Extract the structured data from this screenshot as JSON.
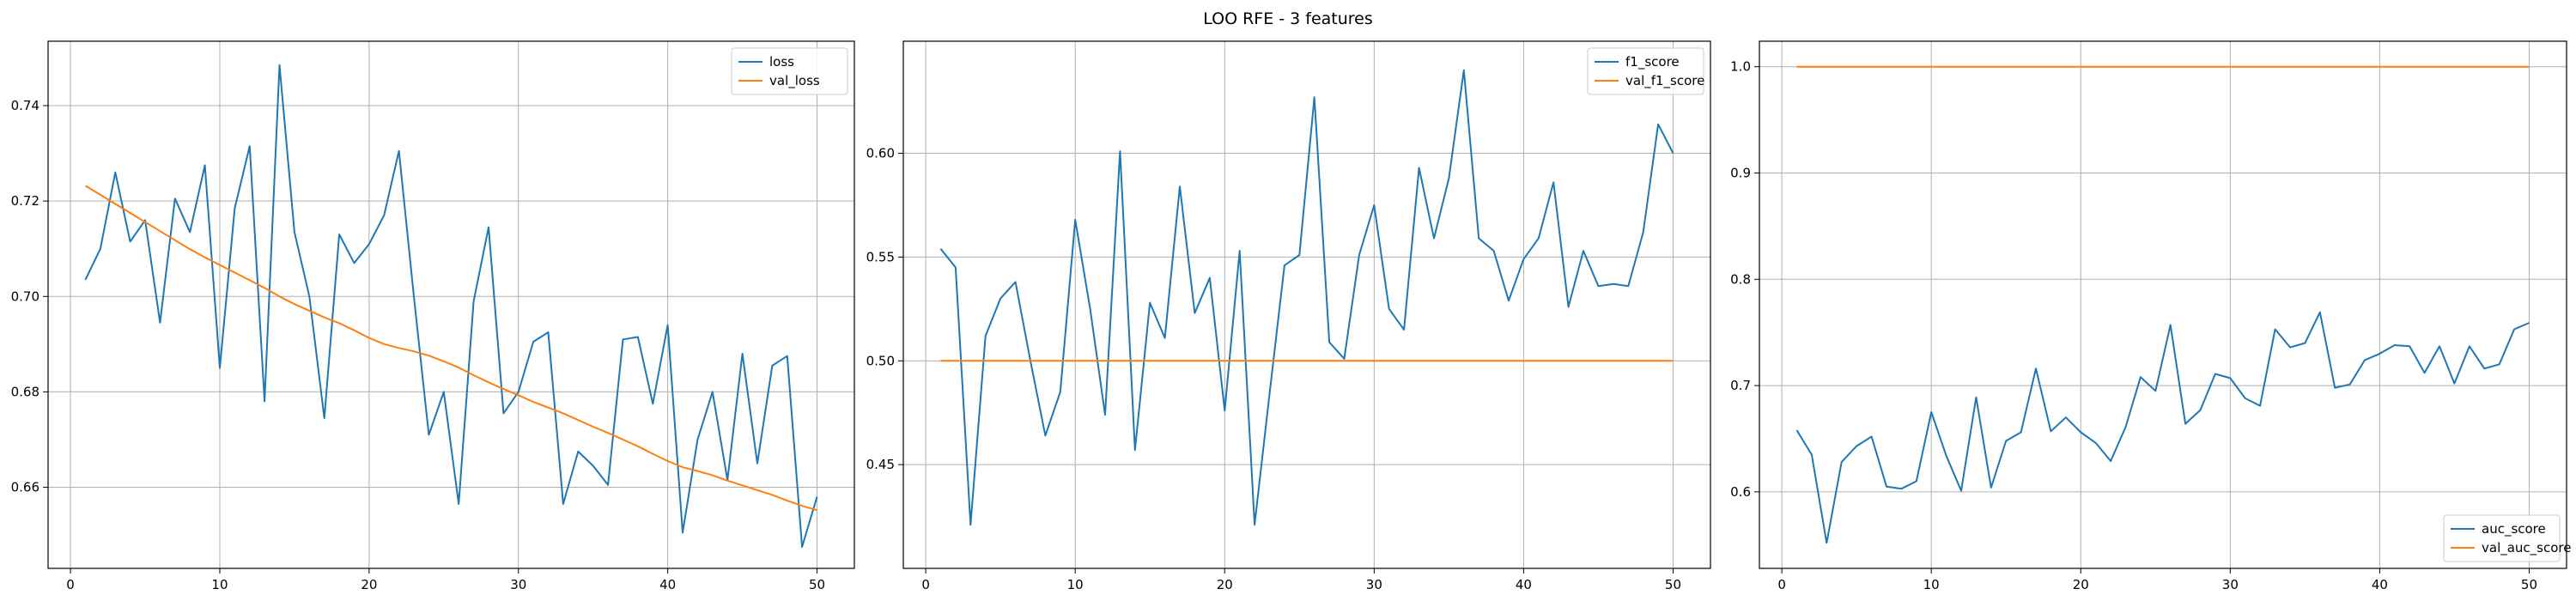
{
  "figure": {
    "title": "LOO RFE - 3 features"
  },
  "colors": {
    "train": "#1f77b4",
    "val": "#ff7f0e",
    "grid": "#b0b0b0",
    "axis": "#000000"
  },
  "chart_data": [
    {
      "type": "line",
      "grid": true,
      "legend_position": "top-right",
      "xlim": [
        -1.5,
        52.5
      ],
      "ylim": [
        0.643,
        0.7535
      ],
      "xticks": [
        0,
        10,
        20,
        30,
        40,
        50
      ],
      "yticks": [
        0.66,
        0.68,
        0.7,
        0.72,
        0.74
      ],
      "ytick_labels": [
        "0.66",
        "0.68",
        "0.70",
        "0.72",
        "0.74"
      ],
      "x": [
        1,
        2,
        3,
        4,
        5,
        6,
        7,
        8,
        9,
        10,
        11,
        12,
        13,
        14,
        15,
        16,
        17,
        18,
        19,
        20,
        21,
        22,
        23,
        24,
        25,
        26,
        27,
        28,
        29,
        30,
        31,
        32,
        33,
        34,
        35,
        36,
        37,
        38,
        39,
        40,
        41,
        42,
        43,
        44,
        45,
        46,
        47,
        48,
        49,
        50
      ],
      "series": [
        {
          "name": "loss",
          "color": "#1f77b4",
          "values": [
            0.7035,
            0.71,
            0.726,
            0.7115,
            0.716,
            0.6945,
            0.7205,
            0.7135,
            0.7275,
            0.685,
            0.7185,
            0.7315,
            0.678,
            0.7485,
            0.7135,
            0.7,
            0.6745,
            0.713,
            0.707,
            0.711,
            0.717,
            0.7305,
            0.7,
            0.671,
            0.68,
            0.6565,
            0.699,
            0.7145,
            0.6755,
            0.68,
            0.6905,
            0.6925,
            0.6565,
            0.6675,
            0.6645,
            0.6605,
            0.691,
            0.6915,
            0.6775,
            0.694,
            0.6505,
            0.67,
            0.68,
            0.6615,
            0.688,
            0.665,
            0.6855,
            0.6875,
            0.6475,
            0.658
          ]
        },
        {
          "name": "val_loss",
          "color": "#ff7f0e",
          "values": [
            0.7232,
            0.7213,
            0.7194,
            0.7175,
            0.7156,
            0.7137,
            0.7118,
            0.7099,
            0.7082,
            0.7066,
            0.705,
            0.7034,
            0.7018,
            0.7,
            0.6984,
            0.697,
            0.6956,
            0.6944,
            0.6929,
            0.6913,
            0.69,
            0.6892,
            0.6885,
            0.6876,
            0.6864,
            0.6851,
            0.6835,
            0.682,
            0.6806,
            0.6793,
            0.6779,
            0.6767,
            0.6755,
            0.6741,
            0.6727,
            0.6714,
            0.67,
            0.6686,
            0.667,
            0.6655,
            0.6642,
            0.6634,
            0.6625,
            0.6614,
            0.6604,
            0.6594,
            0.6584,
            0.6572,
            0.6561,
            0.6552
          ]
        }
      ]
    },
    {
      "type": "line",
      "grid": true,
      "legend_position": "top-right",
      "xlim": [
        -1.5,
        52.5
      ],
      "ylim": [
        0.4,
        0.654
      ],
      "xticks": [
        0,
        10,
        20,
        30,
        40,
        50
      ],
      "yticks": [
        0.45,
        0.5,
        0.55,
        0.6
      ],
      "ytick_labels": [
        "0.45",
        "0.50",
        "0.55",
        "0.60"
      ],
      "x": [
        1,
        2,
        3,
        4,
        5,
        6,
        7,
        8,
        9,
        10,
        11,
        12,
        13,
        14,
        15,
        16,
        17,
        18,
        19,
        20,
        21,
        22,
        23,
        24,
        25,
        26,
        27,
        28,
        29,
        30,
        31,
        32,
        33,
        34,
        35,
        36,
        37,
        38,
        39,
        40,
        41,
        42,
        43,
        44,
        45,
        46,
        47,
        48,
        49,
        50
      ],
      "series": [
        {
          "name": "f1_score",
          "color": "#1f77b4",
          "values": [
            0.554,
            0.545,
            0.421,
            0.512,
            0.53,
            0.538,
            0.5,
            0.464,
            0.485,
            0.568,
            0.525,
            0.474,
            0.601,
            0.457,
            0.528,
            0.511,
            0.584,
            0.523,
            0.54,
            0.476,
            0.553,
            0.421,
            0.484,
            0.546,
            0.551,
            0.627,
            0.509,
            0.501,
            0.551,
            0.575,
            0.525,
            0.515,
            0.593,
            0.559,
            0.588,
            0.64,
            0.559,
            0.553,
            0.529,
            0.549,
            0.559,
            0.586,
            0.526,
            0.553,
            0.536,
            0.537,
            0.536,
            0.562,
            0.614,
            0.6
          ]
        },
        {
          "name": "val_f1_score",
          "color": "#ff7f0e",
          "values": [
            0.5,
            0.5,
            0.5,
            0.5,
            0.5,
            0.5,
            0.5,
            0.5,
            0.5,
            0.5,
            0.5,
            0.5,
            0.5,
            0.5,
            0.5,
            0.5,
            0.5,
            0.5,
            0.5,
            0.5,
            0.5,
            0.5,
            0.5,
            0.5,
            0.5,
            0.5,
            0.5,
            0.5,
            0.5,
            0.5,
            0.5,
            0.5,
            0.5,
            0.5,
            0.5,
            0.5,
            0.5,
            0.5,
            0.5,
            0.5,
            0.5,
            0.5,
            0.5,
            0.5,
            0.5,
            0.5,
            0.5,
            0.5,
            0.5,
            0.5
          ]
        }
      ]
    },
    {
      "type": "line",
      "grid": true,
      "legend_position": "bottom-right",
      "xlim": [
        -1.5,
        52.5
      ],
      "ylim": [
        0.528,
        1.024
      ],
      "xticks": [
        0,
        10,
        20,
        30,
        40,
        50
      ],
      "yticks": [
        0.6,
        0.7,
        0.8,
        0.9,
        1.0
      ],
      "ytick_labels": [
        "0.6",
        "0.7",
        "0.8",
        "0.9",
        "1.0"
      ],
      "x": [
        1,
        2,
        3,
        4,
        5,
        6,
        7,
        8,
        9,
        10,
        11,
        12,
        13,
        14,
        15,
        16,
        17,
        18,
        19,
        20,
        21,
        22,
        23,
        24,
        25,
        26,
        27,
        28,
        29,
        30,
        31,
        32,
        33,
        34,
        35,
        36,
        37,
        38,
        39,
        40,
        41,
        42,
        43,
        44,
        45,
        46,
        47,
        48,
        49,
        50
      ],
      "series": [
        {
          "name": "auc_score",
          "color": "#1f77b4",
          "values": [
            0.658,
            0.635,
            0.552,
            0.628,
            0.643,
            0.652,
            0.605,
            0.603,
            0.61,
            0.675,
            0.634,
            0.601,
            0.689,
            0.604,
            0.648,
            0.656,
            0.716,
            0.657,
            0.67,
            0.656,
            0.646,
            0.629,
            0.661,
            0.708,
            0.695,
            0.757,
            0.664,
            0.677,
            0.711,
            0.707,
            0.688,
            0.681,
            0.753,
            0.736,
            0.74,
            0.769,
            0.698,
            0.701,
            0.724,
            0.73,
            0.738,
            0.737,
            0.712,
            0.737,
            0.702,
            0.737,
            0.716,
            0.72,
            0.753,
            0.759
          ]
        },
        {
          "name": "val_auc_score",
          "color": "#ff7f0e",
          "values": [
            1.0,
            1.0,
            1.0,
            1.0,
            1.0,
            1.0,
            1.0,
            1.0,
            1.0,
            1.0,
            1.0,
            1.0,
            1.0,
            1.0,
            1.0,
            1.0,
            1.0,
            1.0,
            1.0,
            1.0,
            1.0,
            1.0,
            1.0,
            1.0,
            1.0,
            1.0,
            1.0,
            1.0,
            1.0,
            1.0,
            1.0,
            1.0,
            1.0,
            1.0,
            1.0,
            1.0,
            1.0,
            1.0,
            1.0,
            1.0,
            1.0,
            1.0,
            1.0,
            1.0,
            1.0,
            1.0,
            1.0,
            1.0,
            1.0,
            1.0
          ]
        }
      ]
    }
  ]
}
